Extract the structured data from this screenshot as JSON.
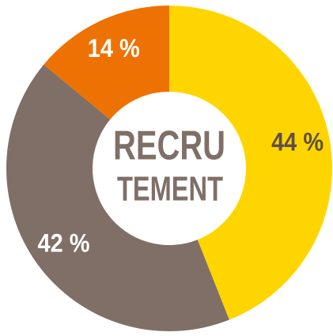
{
  "chart_data": {
    "type": "donut",
    "center_text": [
      "RECRU",
      "TEMENT"
    ],
    "values": [
      44,
      42,
      14
    ],
    "value_labels": [
      "44 %",
      "42 %",
      "14 %"
    ],
    "colors": [
      "#ffd500",
      "#7f6f66",
      "#ee7203"
    ],
    "label_colors": [
      "#5e4f47",
      "#ffffff",
      "#ffffff"
    ],
    "center_color": "#7f6f66"
  }
}
